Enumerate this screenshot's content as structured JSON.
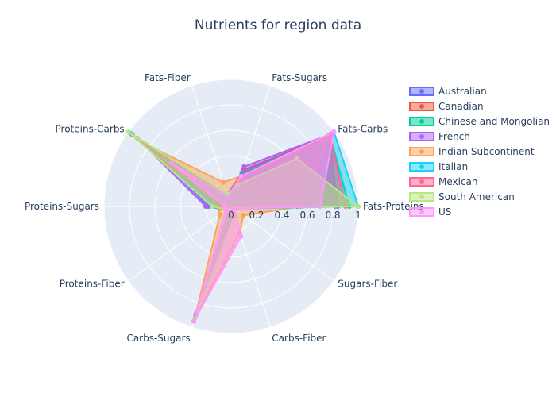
{
  "chart_data": {
    "type": "radar",
    "title": "Nutrients for region data",
    "axes": [
      "Fats-Proteins",
      "Fats-Carbs",
      "Fats-Sugars",
      "Fats-Fiber",
      "Proteins-Carbs",
      "Proteins-Sugars",
      "Proteins-Fiber",
      "Carbs-Sugars",
      "Carbs-Fiber",
      "Sugars-Fiber"
    ],
    "radial_ticks": [
      "0",
      "0.2",
      "0.4",
      "0.6",
      "0.8",
      "1"
    ],
    "rlim": [
      0,
      1
    ],
    "grid": true,
    "legend_position": "right",
    "series": [
      {
        "name": "Australian",
        "color": "#636efa",
        "values": [
          0.84,
          0.95,
          0.28,
          0.1,
          0.8,
          0.18,
          0.05,
          0.88,
          0.05,
          0.01
        ]
      },
      {
        "name": "Canadian",
        "color": "#ef553b",
        "values": [
          0.52,
          0.95,
          0.3,
          0.08,
          0.82,
          0.05,
          0.04,
          0.95,
          0.05,
          0.03
        ]
      },
      {
        "name": "Chinese and Mongolian",
        "color": "#00cc96",
        "values": [
          0.93,
          0.96,
          0.27,
          0.05,
          0.96,
          0.12,
          0.02,
          0.9,
          0.06,
          0.01
        ]
      },
      {
        "name": "French",
        "color": "#ab63fa",
        "values": [
          0.82,
          0.97,
          0.33,
          0.05,
          0.91,
          0.2,
          0.03,
          0.87,
          0.06,
          0.01
        ]
      },
      {
        "name": "Indian Subcontinent",
        "color": "#ffa15a",
        "values": [
          0.55,
          0.95,
          0.25,
          0.2,
          0.84,
          0.1,
          0.11,
          0.93,
          0.22,
          0.12
        ]
      },
      {
        "name": "Italian",
        "color": "#19d3f3",
        "values": [
          1.0,
          1.0,
          0.25,
          0.05,
          0.98,
          0.12,
          0.04,
          0.9,
          0.08,
          0.03
        ]
      },
      {
        "name": "Mexican",
        "color": "#ff6692",
        "values": [
          0.9,
          0.96,
          0.24,
          0.08,
          0.96,
          0.1,
          0.02,
          0.89,
          0.06,
          0.01
        ]
      },
      {
        "name": "South American",
        "color": "#b6e880",
        "values": [
          1.0,
          0.64,
          0.18,
          0.1,
          1.0,
          0.15,
          0.04,
          0.93,
          0.08,
          0.02
        ]
      },
      {
        "name": "US",
        "color": "#ff97ff",
        "values": [
          0.7,
          1.0,
          0.25,
          0.08,
          0.58,
          0.05,
          0.05,
          0.95,
          0.25,
          0.03
        ]
      }
    ]
  }
}
